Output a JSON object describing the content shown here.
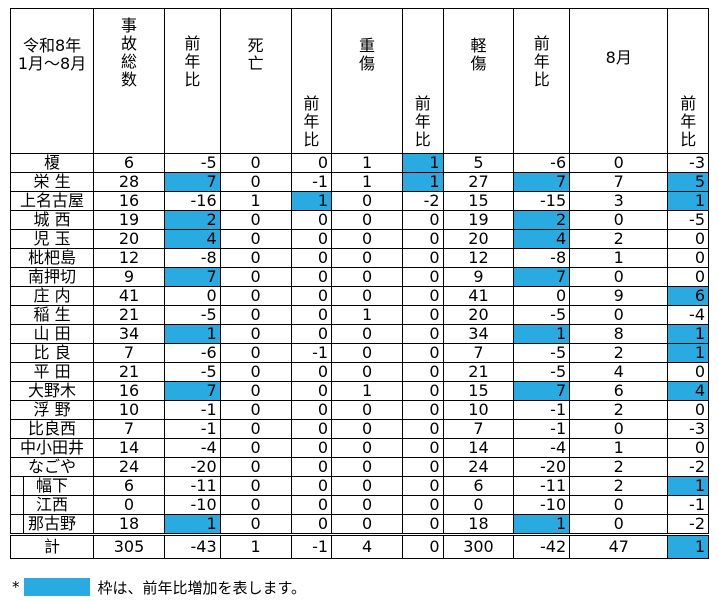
{
  "header": {
    "corner": [
      "令和8年",
      "1月〜8月"
    ],
    "total_accidents": [
      "事",
      "故",
      "総",
      "数"
    ],
    "yoy": [
      "前",
      "年",
      "比"
    ],
    "deaths": [
      "死",
      "亡"
    ],
    "serious": [
      "重",
      "傷"
    ],
    "minor": [
      "軽",
      "傷"
    ],
    "august": "8月"
  },
  "rows": [
    {
      "name": "榎",
      "total": "6",
      "total_yoy": "-5",
      "total_inc": false,
      "death": "0",
      "death_yoy": "0",
      "death_inc": false,
      "serious": "1",
      "serious_yoy": "1",
      "serious_inc": true,
      "minor": "5",
      "minor_yoy": "-6",
      "minor_inc": false,
      "aug": "0",
      "aug_yoy": "-3",
      "aug_inc": false,
      "indent": false
    },
    {
      "name": "栄 生",
      "total": "28",
      "total_yoy": "7",
      "total_inc": true,
      "death": "0",
      "death_yoy": "-1",
      "death_inc": false,
      "serious": "1",
      "serious_yoy": "1",
      "serious_inc": true,
      "minor": "27",
      "minor_yoy": "7",
      "minor_inc": true,
      "aug": "7",
      "aug_yoy": "5",
      "aug_inc": true,
      "indent": false
    },
    {
      "name": "上名古屋",
      "total": "16",
      "total_yoy": "-16",
      "total_inc": false,
      "death": "1",
      "death_yoy": "1",
      "death_inc": true,
      "serious": "0",
      "serious_yoy": "-2",
      "serious_inc": false,
      "minor": "15",
      "minor_yoy": "-15",
      "minor_inc": false,
      "aug": "3",
      "aug_yoy": "1",
      "aug_inc": true,
      "indent": false
    },
    {
      "name": "城 西",
      "total": "19",
      "total_yoy": "2",
      "total_inc": true,
      "death": "0",
      "death_yoy": "0",
      "death_inc": false,
      "serious": "0",
      "serious_yoy": "0",
      "serious_inc": false,
      "minor": "19",
      "minor_yoy": "2",
      "minor_inc": true,
      "aug": "0",
      "aug_yoy": "-5",
      "aug_inc": false,
      "indent": false
    },
    {
      "name": "児 玉",
      "total": "20",
      "total_yoy": "4",
      "total_inc": true,
      "death": "0",
      "death_yoy": "0",
      "death_inc": false,
      "serious": "0",
      "serious_yoy": "0",
      "serious_inc": false,
      "minor": "20",
      "minor_yoy": "4",
      "minor_inc": true,
      "aug": "2",
      "aug_yoy": "0",
      "aug_inc": false,
      "indent": false
    },
    {
      "name": "枇杷島",
      "total": "12",
      "total_yoy": "-8",
      "total_inc": false,
      "death": "0",
      "death_yoy": "0",
      "death_inc": false,
      "serious": "0",
      "serious_yoy": "0",
      "serious_inc": false,
      "minor": "12",
      "minor_yoy": "-8",
      "minor_inc": false,
      "aug": "1",
      "aug_yoy": "0",
      "aug_inc": false,
      "indent": false
    },
    {
      "name": "南押切",
      "total": "9",
      "total_yoy": "7",
      "total_inc": true,
      "death": "0",
      "death_yoy": "0",
      "death_inc": false,
      "serious": "0",
      "serious_yoy": "0",
      "serious_inc": false,
      "minor": "9",
      "minor_yoy": "7",
      "minor_inc": true,
      "aug": "0",
      "aug_yoy": "0",
      "aug_inc": false,
      "indent": false
    },
    {
      "name": "庄 内",
      "total": "41",
      "total_yoy": "0",
      "total_inc": false,
      "death": "0",
      "death_yoy": "0",
      "death_inc": false,
      "serious": "0",
      "serious_yoy": "0",
      "serious_inc": false,
      "minor": "41",
      "minor_yoy": "0",
      "minor_inc": false,
      "aug": "9",
      "aug_yoy": "6",
      "aug_inc": true,
      "indent": false
    },
    {
      "name": "稲 生",
      "total": "21",
      "total_yoy": "-5",
      "total_inc": false,
      "death": "0",
      "death_yoy": "0",
      "death_inc": false,
      "serious": "1",
      "serious_yoy": "0",
      "serious_inc": false,
      "minor": "20",
      "minor_yoy": "-5",
      "minor_inc": false,
      "aug": "0",
      "aug_yoy": "-4",
      "aug_inc": false,
      "indent": false
    },
    {
      "name": "山 田",
      "total": "34",
      "total_yoy": "1",
      "total_inc": true,
      "death": "0",
      "death_yoy": "0",
      "death_inc": false,
      "serious": "0",
      "serious_yoy": "0",
      "serious_inc": false,
      "minor": "34",
      "minor_yoy": "1",
      "minor_inc": true,
      "aug": "8",
      "aug_yoy": "1",
      "aug_inc": true,
      "indent": false
    },
    {
      "name": "比 良",
      "total": "7",
      "total_yoy": "-6",
      "total_inc": false,
      "death": "0",
      "death_yoy": "-1",
      "death_inc": false,
      "serious": "0",
      "serious_yoy": "0",
      "serious_inc": false,
      "minor": "7",
      "minor_yoy": "-5",
      "minor_inc": false,
      "aug": "2",
      "aug_yoy": "1",
      "aug_inc": true,
      "indent": false
    },
    {
      "name": "平 田",
      "total": "21",
      "total_yoy": "-5",
      "total_inc": false,
      "death": "0",
      "death_yoy": "0",
      "death_inc": false,
      "serious": "0",
      "serious_yoy": "0",
      "serious_inc": false,
      "minor": "21",
      "minor_yoy": "-5",
      "minor_inc": false,
      "aug": "4",
      "aug_yoy": "0",
      "aug_inc": false,
      "indent": false
    },
    {
      "name": "大野木",
      "total": "16",
      "total_yoy": "7",
      "total_inc": true,
      "death": "0",
      "death_yoy": "0",
      "death_inc": false,
      "serious": "1",
      "serious_yoy": "0",
      "serious_inc": false,
      "minor": "15",
      "minor_yoy": "7",
      "minor_inc": true,
      "aug": "6",
      "aug_yoy": "4",
      "aug_inc": true,
      "indent": false
    },
    {
      "name": "浮 野",
      "total": "10",
      "total_yoy": "-1",
      "total_inc": false,
      "death": "0",
      "death_yoy": "0",
      "death_inc": false,
      "serious": "0",
      "serious_yoy": "0",
      "serious_inc": false,
      "minor": "10",
      "minor_yoy": "-1",
      "minor_inc": false,
      "aug": "2",
      "aug_yoy": "0",
      "aug_inc": false,
      "indent": false
    },
    {
      "name": "比良西",
      "total": "7",
      "total_yoy": "-1",
      "total_inc": false,
      "death": "0",
      "death_yoy": "0",
      "death_inc": false,
      "serious": "0",
      "serious_yoy": "0",
      "serious_inc": false,
      "minor": "7",
      "minor_yoy": "-1",
      "minor_inc": false,
      "aug": "0",
      "aug_yoy": "-3",
      "aug_inc": false,
      "indent": false
    },
    {
      "name": "中小田井",
      "total": "14",
      "total_yoy": "-4",
      "total_inc": false,
      "death": "0",
      "death_yoy": "0",
      "death_inc": false,
      "serious": "0",
      "serious_yoy": "0",
      "serious_inc": false,
      "minor": "14",
      "minor_yoy": "-4",
      "minor_inc": false,
      "aug": "1",
      "aug_yoy": "0",
      "aug_inc": false,
      "indent": false
    },
    {
      "name": "なごや",
      "total": "24",
      "total_yoy": "-20",
      "total_inc": false,
      "death": "0",
      "death_yoy": "0",
      "death_inc": false,
      "serious": "0",
      "serious_yoy": "0",
      "serious_inc": false,
      "minor": "24",
      "minor_yoy": "-20",
      "minor_inc": false,
      "aug": "2",
      "aug_yoy": "-2",
      "aug_inc": false,
      "indent": false
    },
    {
      "name": "幅下",
      "total": "6",
      "total_yoy": "-11",
      "total_inc": false,
      "death": "0",
      "death_yoy": "0",
      "death_inc": false,
      "serious": "0",
      "serious_yoy": "0",
      "serious_inc": false,
      "minor": "6",
      "minor_yoy": "-11",
      "minor_inc": false,
      "aug": "2",
      "aug_yoy": "1",
      "aug_inc": true,
      "indent": true
    },
    {
      "name": "江西",
      "total": "0",
      "total_yoy": "-10",
      "total_inc": false,
      "death": "0",
      "death_yoy": "0",
      "death_inc": false,
      "serious": "0",
      "serious_yoy": "0",
      "serious_inc": false,
      "minor": "0",
      "minor_yoy": "-10",
      "minor_inc": false,
      "aug": "0",
      "aug_yoy": "-1",
      "aug_inc": false,
      "indent": true
    },
    {
      "name": "那古野",
      "total": "18",
      "total_yoy": "1",
      "total_inc": true,
      "death": "0",
      "death_yoy": "0",
      "death_inc": false,
      "serious": "0",
      "serious_yoy": "0",
      "serious_inc": false,
      "minor": "18",
      "minor_yoy": "1",
      "minor_inc": true,
      "aug": "0",
      "aug_yoy": "-2",
      "aug_inc": false,
      "indent": true
    }
  ],
  "total_row": {
    "name": "計",
    "total": "305",
    "total_yoy": "-43",
    "total_inc": false,
    "death": "1",
    "death_yoy": "-1",
    "death_inc": false,
    "serious": "4",
    "serious_yoy": "0",
    "serious_inc": false,
    "minor": "300",
    "minor_yoy": "-42",
    "minor_inc": false,
    "aug": "47",
    "aug_yoy": "1",
    "aug_inc": true
  },
  "note": {
    "mark": "*",
    "text": "枠は、前年比増加を表します。"
  },
  "colors": {
    "increase": "#29abe2"
  }
}
